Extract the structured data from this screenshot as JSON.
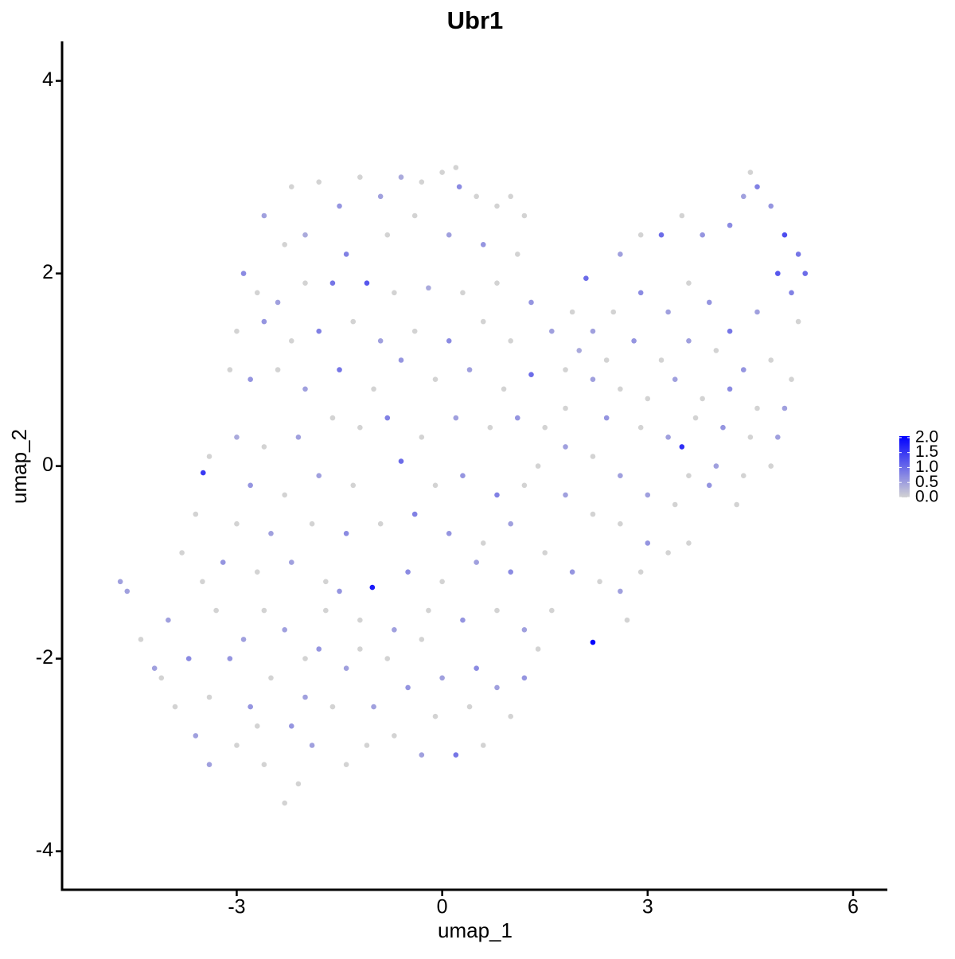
{
  "chart_data": {
    "type": "scatter",
    "title": "Ubr1",
    "x_label": "umap_1",
    "y_label": "umap_2",
    "xlim": [
      -5.55,
      6.5
    ],
    "ylim": [
      -4.4,
      4.41
    ],
    "xticks": [
      -3,
      0,
      3,
      6
    ],
    "yticks": [
      -4,
      -2,
      0,
      2,
      4
    ],
    "color_low": "#d3d3d3",
    "color_high": "#0000ff",
    "color_lim": [
      0,
      2.05
    ],
    "color_ticks": [
      {
        "value": 0,
        "label": "0.0"
      },
      0.5,
      {
        "value": 1,
        "label": "1.0"
      },
      1.5,
      {
        "value": 2,
        "label": "2.0"
      }
    ],
    "legend_position": "right",
    "x": [
      -2.2,
      -1.8,
      -1.5,
      -1.2,
      -0.9,
      -0.6,
      -0.3,
      0,
      0.2,
      0.25,
      0.5,
      0.8,
      1.0,
      1.2,
      -2.6,
      -2.3,
      -2.0,
      -1.4,
      -0.8,
      -0.4,
      0.1,
      0.6,
      1.1,
      -2.9,
      -2.7,
      -2.4,
      -2.0,
      -1.6,
      -1.1,
      -0.7,
      -0.2,
      0.3,
      0.8,
      1.3,
      -3.0,
      -2.6,
      -2.2,
      -1.8,
      -1.3,
      -0.9,
      -0.4,
      0.1,
      0.6,
      1.0,
      1.6,
      -3.1,
      -2.8,
      -2.4,
      -2.0,
      -1.5,
      -1.0,
      -0.6,
      -0.1,
      0.4,
      0.9,
      1.3,
      1.8,
      2.1,
      2.6,
      2.9,
      3.2,
      3.5,
      3.8,
      4.2,
      4.4,
      4.5,
      4.6,
      4.8,
      5.0,
      5.2,
      5.3,
      4.9,
      5.1,
      5.2,
      4.6,
      4.2,
      3.9,
      3.6,
      3.3,
      2.9,
      2.5,
      2.2,
      1.9,
      2.0,
      2.4,
      2.8,
      3.2,
      3.6,
      4.0,
      4.4,
      4.8,
      5.1,
      5.0,
      4.6,
      4.2,
      3.8,
      3.4,
      3.0,
      2.6,
      2.2,
      1.8,
      2.4,
      2.9,
      3.3,
      3.7,
      4.1,
      4.5,
      4.9,
      4.8,
      4.4,
      4.0,
      3.6,
      3.5,
      3.9,
      4.3,
      3.4,
      3.0,
      2.6,
      2.2,
      1.8,
      1.5,
      1.4,
      1.8,
      2.2,
      2.6,
      3.0,
      3.3,
      3.6,
      2.9,
      2.6,
      2.3,
      2.7,
      2.2,
      -1.2,
      -0.8,
      -0.3,
      0.2,
      0.7,
      1.1,
      -1.6,
      -2.1,
      -2.6,
      -3.0,
      -3.4,
      -3.49,
      -2.8,
      -2.3,
      -1.8,
      -1.3,
      -0.6,
      -0.1,
      0.3,
      0.8,
      1.2,
      1.0,
      0.6,
      0.1,
      -0.4,
      -0.9,
      -1.4,
      -1.9,
      -2.5,
      -3.0,
      -3.6,
      -3.8,
      -3.2,
      -2.7,
      -2.2,
      -1.7,
      -1.02,
      -0.5,
      0.0,
      0.5,
      1.0,
      1.5,
      1.9,
      1.6,
      1.2,
      0.8,
      0.3,
      -0.2,
      -0.7,
      -1.2,
      -1.7,
      -4.7,
      -4.6,
      -4.4,
      -4.1,
      -4.0,
      -3.9,
      -3.7,
      -3.6,
      -3.4,
      -3.3,
      -3.1,
      -3.0,
      -2.9,
      -2.8,
      -2.6,
      -2.5,
      -2.3,
      -2.2,
      -2.1,
      -2.0,
      -1.9,
      -1.8,
      -1.6,
      -1.4,
      -1.4,
      -1.2,
      -1.0,
      -0.8,
      -0.7,
      -0.5,
      -0.3,
      -0.1,
      0.0,
      0.2,
      0.4,
      0.6,
      0.8,
      1.0,
      1.2,
      1.4,
      -2.3,
      -3.4,
      -2.7,
      -2.0,
      -1.1,
      0.5,
      -0.3,
      -1.5,
      -2.6,
      -3.5,
      -4.2
    ],
    "y": [
      2.9,
      2.95,
      2.7,
      3.0,
      2.8,
      3.0,
      2.95,
      3.05,
      3.1,
      2.9,
      2.8,
      2.7,
      2.8,
      2.6,
      2.6,
      2.3,
      2.4,
      2.2,
      2.4,
      2.6,
      2.4,
      2.3,
      2.2,
      2.0,
      1.8,
      1.7,
      1.9,
      1.9,
      1.9,
      1.8,
      1.85,
      1.8,
      1.9,
      1.7,
      1.4,
      1.5,
      1.3,
      1.4,
      1.5,
      1.3,
      1.4,
      1.3,
      1.5,
      1.3,
      1.4,
      1.0,
      0.9,
      1.0,
      0.8,
      1.0,
      0.8,
      1.1,
      0.9,
      1.0,
      0.8,
      0.95,
      1.0,
      1.95,
      2.2,
      2.4,
      2.4,
      2.6,
      2.4,
      2.5,
      2.8,
      3.05,
      2.9,
      2.7,
      2.4,
      2.2,
      2.0,
      2.0,
      1.8,
      1.5,
      1.6,
      1.4,
      1.7,
      1.9,
      1.6,
      1.8,
      1.6,
      1.4,
      1.6,
      1.2,
      1.1,
      1.3,
      1.1,
      1.3,
      1.2,
      1.0,
      1.1,
      0.9,
      0.6,
      0.6,
      0.8,
      0.7,
      0.9,
      0.7,
      0.8,
      0.9,
      0.6,
      0.5,
      0.4,
      0.3,
      0.5,
      0.4,
      0.3,
      0.3,
      0.0,
      -0.1,
      0.0,
      -0.1,
      0.2,
      -0.2,
      -0.4,
      -0.4,
      -0.3,
      -0.1,
      0.1,
      0.2,
      0.4,
      0.0,
      -0.3,
      -0.5,
      -0.6,
      -0.8,
      -0.9,
      -0.8,
      -1.1,
      -1.3,
      -1.2,
      -1.6,
      -1.83,
      0.4,
      0.5,
      0.3,
      0.5,
      0.4,
      0.5,
      0.5,
      0.3,
      0.2,
      0.3,
      0.1,
      -0.07,
      -0.2,
      -0.3,
      -0.1,
      -0.2,
      0.05,
      -0.2,
      -0.1,
      -0.3,
      -0.2,
      -0.6,
      -0.8,
      -0.7,
      -0.5,
      -0.6,
      -0.7,
      -0.6,
      -0.7,
      -0.6,
      -0.5,
      -0.9,
      -1.0,
      -1.1,
      -1.0,
      -1.2,
      -1.26,
      -1.1,
      -1.2,
      -1.0,
      -1.1,
      -0.9,
      -1.1,
      -1.5,
      -1.7,
      -1.5,
      -1.6,
      -1.5,
      -1.7,
      -1.6,
      -1.5,
      -1.2,
      -1.3,
      -1.8,
      -2.2,
      -1.6,
      -2.5,
      -2.0,
      -2.8,
      -2.4,
      -1.5,
      -2.0,
      -2.9,
      -1.8,
      -2.5,
      -3.1,
      -2.2,
      -1.7,
      -2.7,
      -3.3,
      -2.0,
      -2.9,
      -1.9,
      -2.5,
      -2.1,
      -3.1,
      -1.9,
      -2.5,
      -2.0,
      -2.8,
      -2.3,
      -3.0,
      -2.6,
      -2.2,
      -3.0,
      -2.5,
      -2.9,
      -2.3,
      -2.6,
      -2.2,
      -1.9,
      -3.5,
      -3.1,
      -2.7,
      -2.4,
      -2.9,
      -2.1,
      -1.8,
      -1.3,
      -1.5,
      -1.2,
      -2.1
    ],
    "values": [
      0,
      0,
      0.6,
      0,
      0.5,
      0.4,
      0,
      0,
      0,
      0.7,
      0,
      0,
      0,
      0,
      0.5,
      0,
      0.4,
      0.8,
      0,
      0,
      0.5,
      0.6,
      0,
      0.7,
      0,
      0.5,
      0,
      0.9,
      1.2,
      0,
      0.4,
      0,
      0,
      0.6,
      0,
      0.6,
      0,
      0.8,
      0,
      0.5,
      0,
      0.7,
      0,
      0,
      0.5,
      0,
      0.6,
      0,
      0.5,
      0.9,
      0,
      0.6,
      0,
      0.5,
      0,
      1.0,
      0,
      1.0,
      0.5,
      0,
      1.0,
      0,
      0.6,
      0.7,
      0.5,
      0,
      0.8,
      0.6,
      1.3,
      0.9,
      1.0,
      1.2,
      0.8,
      0,
      0.5,
      0.9,
      0.6,
      0,
      0.5,
      0.7,
      0,
      0.5,
      0,
      0.4,
      0,
      0.6,
      0,
      0.5,
      0,
      0.6,
      0,
      0,
      0.5,
      0,
      0.7,
      0,
      0.5,
      0,
      0,
      0.5,
      0,
      0.6,
      0,
      0.5,
      0,
      0.6,
      0,
      0.5,
      0,
      0,
      0.5,
      0,
      1.6,
      0.6,
      0,
      0,
      0.5,
      0.5,
      0,
      0.5,
      0,
      0,
      0.5,
      0,
      0,
      0.6,
      0,
      0,
      0,
      0.5,
      0,
      0,
      2.0,
      0,
      0.8,
      0,
      0.5,
      0,
      0.6,
      0,
      0.5,
      0,
      0.4,
      0,
      1.5,
      0.6,
      0,
      0.5,
      0,
      1.0,
      0,
      0.6,
      0.8,
      0,
      0.5,
      0,
      0.6,
      0.8,
      0,
      0.7,
      0,
      0.5,
      0,
      0,
      0,
      0.6,
      0,
      0.5,
      0,
      1.8,
      0.7,
      0,
      0.5,
      0.7,
      0,
      0.6,
      0,
      0.5,
      0,
      0.6,
      0,
      0.5,
      0,
      0,
      0.5,
      0.5,
      0,
      0,
      0.5,
      0,
      0.7,
      0.5,
      0,
      0,
      0.6,
      0,
      0.5,
      0.6,
      0,
      0,
      0.5,
      0.6,
      0,
      0,
      0.5,
      0.6,
      0,
      0.5,
      0,
      0,
      0.5,
      0,
      0,
      0.6,
      0.5,
      0,
      0.5,
      0.9,
      0,
      0,
      0.5,
      0,
      0.6,
      0,
      0,
      0.5,
      0,
      0.5,
      0,
      0.7,
      0,
      0.6,
      0,
      0,
      0.5
    ]
  }
}
